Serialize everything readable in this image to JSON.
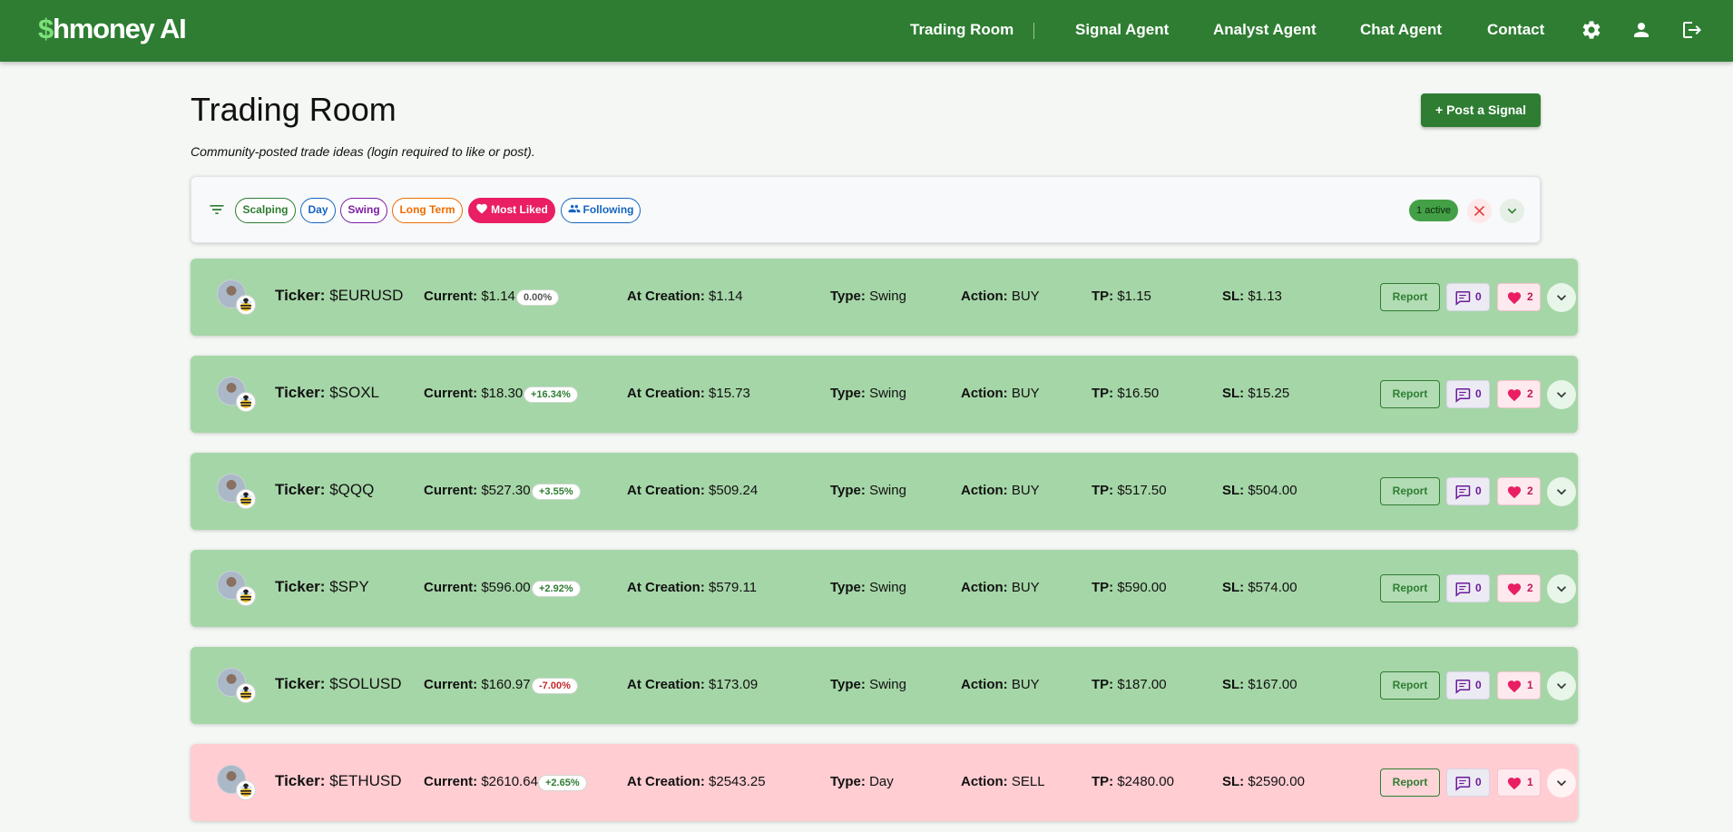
{
  "nav": {
    "brand_symbol": "$",
    "brand_rest": "hmoney AI",
    "links": [
      "Trading Room",
      "Signal Agent",
      "Analyst Agent",
      "Chat Agent",
      "Contact"
    ],
    "icons": [
      "gear-icon",
      "user-icon",
      "logout-icon"
    ]
  },
  "header": {
    "title": "Trading Room",
    "subtitle": "Community-posted trade ideas (login required to like or post).",
    "post_button": "+ Post a Signal"
  },
  "filters": {
    "chips": [
      "Scalping",
      "Day",
      "Swing",
      "Long Term",
      "Most Liked",
      "Following"
    ],
    "selected": "Most Liked",
    "active_label": "1 active",
    "colors": {
      "scalping": "#2e7d32",
      "day": "#1565c0",
      "swing": "#7b1fa2",
      "long_term": "#ef6c00",
      "most_liked": "#e91e63",
      "following": "#1565c0"
    }
  },
  "labels": {
    "ticker": "Ticker:",
    "current": "Current:",
    "at_creation": "At Creation:",
    "type": "Type:",
    "action": "Action:",
    "tp": "TP:",
    "sl": "SL:",
    "report": "Report"
  },
  "colors": {
    "brand_green": "#2e7d32",
    "buy_card": "#a5d6a7",
    "sell_card": "#ffcdd2"
  },
  "signals": [
    {
      "ticker": "$EURUSD",
      "current": "$1.14",
      "change": "0.00%",
      "at_creation": "$1.14",
      "type": "Swing",
      "action": "BUY",
      "tp": "$1.15",
      "sl": "$1.13",
      "comments": "0",
      "likes": "2"
    },
    {
      "ticker": "$SOXL",
      "current": "$18.30",
      "change": "+16.34%",
      "at_creation": "$15.73",
      "type": "Swing",
      "action": "BUY",
      "tp": "$16.50",
      "sl": "$15.25",
      "comments": "0",
      "likes": "2"
    },
    {
      "ticker": "$QQQ",
      "current": "$527.30",
      "change": "+3.55%",
      "at_creation": "$509.24",
      "type": "Swing",
      "action": "BUY",
      "tp": "$517.50",
      "sl": "$504.00",
      "comments": "0",
      "likes": "2"
    },
    {
      "ticker": "$SPY",
      "current": "$596.00",
      "change": "+2.92%",
      "at_creation": "$579.11",
      "type": "Swing",
      "action": "BUY",
      "tp": "$590.00",
      "sl": "$574.00",
      "comments": "0",
      "likes": "2"
    },
    {
      "ticker": "$SOLUSD",
      "current": "$160.97",
      "change": "-7.00%",
      "at_creation": "$173.09",
      "type": "Swing",
      "action": "BUY",
      "tp": "$187.00",
      "sl": "$167.00",
      "comments": "0",
      "likes": "1"
    },
    {
      "ticker": "$ETHUSD",
      "current": "$2610.64",
      "change": "+2.65%",
      "at_creation": "$2543.25",
      "type": "Day",
      "action": "SELL",
      "tp": "$2480.00",
      "sl": "$2590.00",
      "comments": "0",
      "likes": "1"
    }
  ]
}
